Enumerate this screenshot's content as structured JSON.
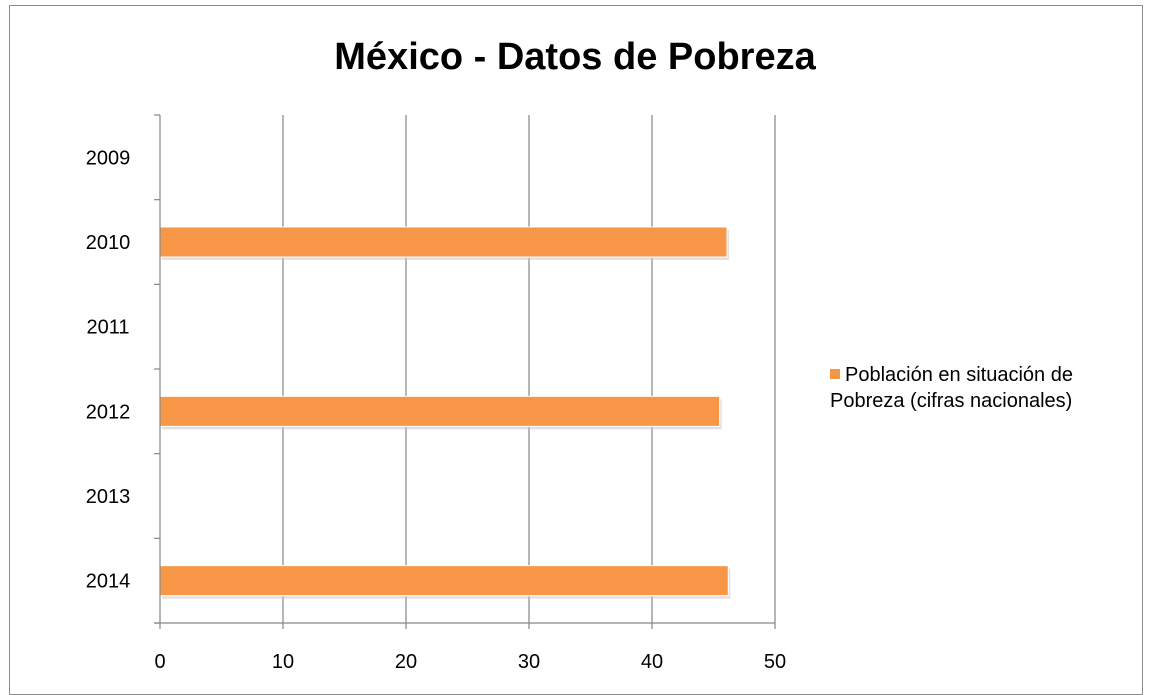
{
  "chart_data": {
    "type": "bar",
    "orientation": "horizontal",
    "title": "México - Datos de Pobreza",
    "categories": [
      "2009",
      "2010",
      "2011",
      "2012",
      "2013",
      "2014"
    ],
    "series": [
      {
        "name": "Población en situación de Pobreza (cifras nacionales)",
        "color": "#f79646",
        "values": [
          null,
          46.1,
          null,
          45.5,
          null,
          46.2
        ]
      }
    ],
    "xlim": [
      0,
      50
    ],
    "xticks": [
      "0",
      "10",
      "20",
      "30",
      "40",
      "50"
    ],
    "grid": true,
    "legend_position": "right",
    "xlabel": "",
    "ylabel": ""
  }
}
